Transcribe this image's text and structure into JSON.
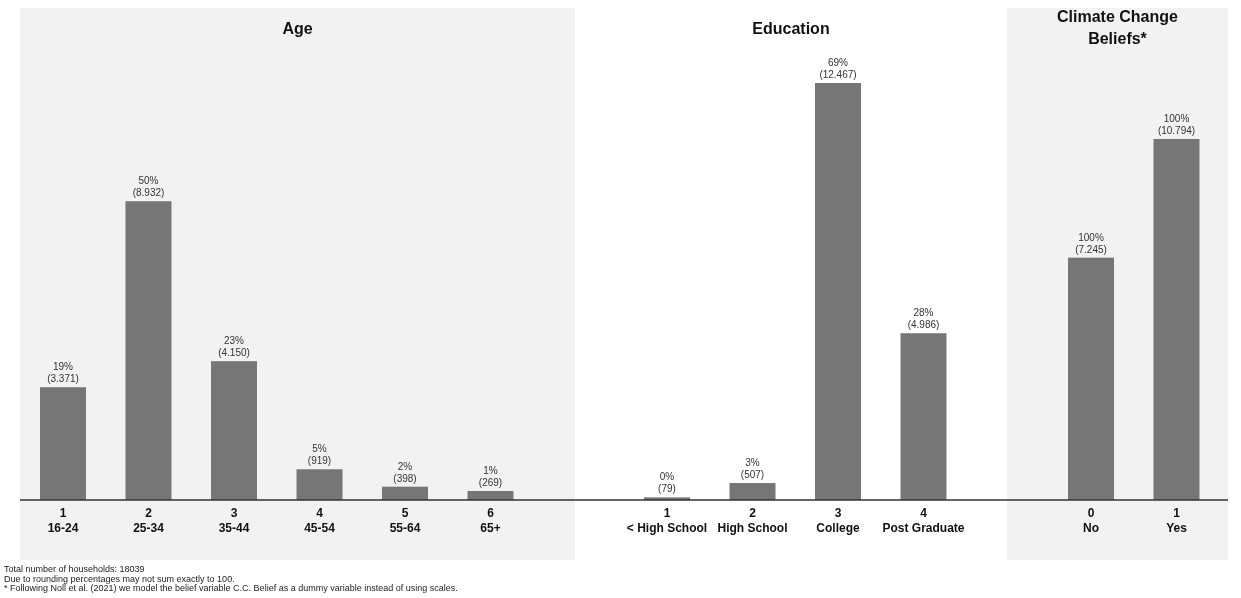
{
  "chart_data": [
    {
      "type": "bar",
      "title": "Age",
      "categories": [
        "1\n16-24",
        "2\n25-34",
        "3\n35-44",
        "4\n45-54",
        "5\n55-64",
        "6\n65+"
      ],
      "values": [
        3371,
        8932,
        4150,
        919,
        398,
        269
      ],
      "value_labels": [
        "19%\n(3.371)",
        "50%\n(8.932)",
        "23%\n(4.150)",
        "5%\n(919)",
        "2%\n(398)",
        "1%\n(269)"
      ],
      "color": "#767676",
      "annotations": [
        "Total number of households: 18039",
        "Due to rounding percentages may not sum exactly to 100.",
        "* Following Noll et al. (2021) we model the belief variable C.C. Belief as a dummy variable instead of using scales."
      ]
    },
    {
      "type": "bar",
      "title": "Education",
      "categories": [
        "1\n< High School",
        "2\nHigh School",
        "3\nCollege",
        "4\nPost Graduate"
      ],
      "values": [
        79,
        507,
        12467,
        4986
      ],
      "value_labels": [
        "0%\n(79)",
        "3%\n(507)",
        "69%\n(12.467)",
        "28%\n(4.986)"
      ],
      "color": "#767676"
    },
    {
      "type": "bar",
      "title": "Climate Change Beliefs*",
      "categories": [
        "0\nNo",
        "1\nYes"
      ],
      "values": [
        7245,
        10794
      ],
      "value_labels": [
        "100%\n(7.245)",
        "100%\n(10.794)"
      ],
      "color": "#767676"
    }
  ]
}
